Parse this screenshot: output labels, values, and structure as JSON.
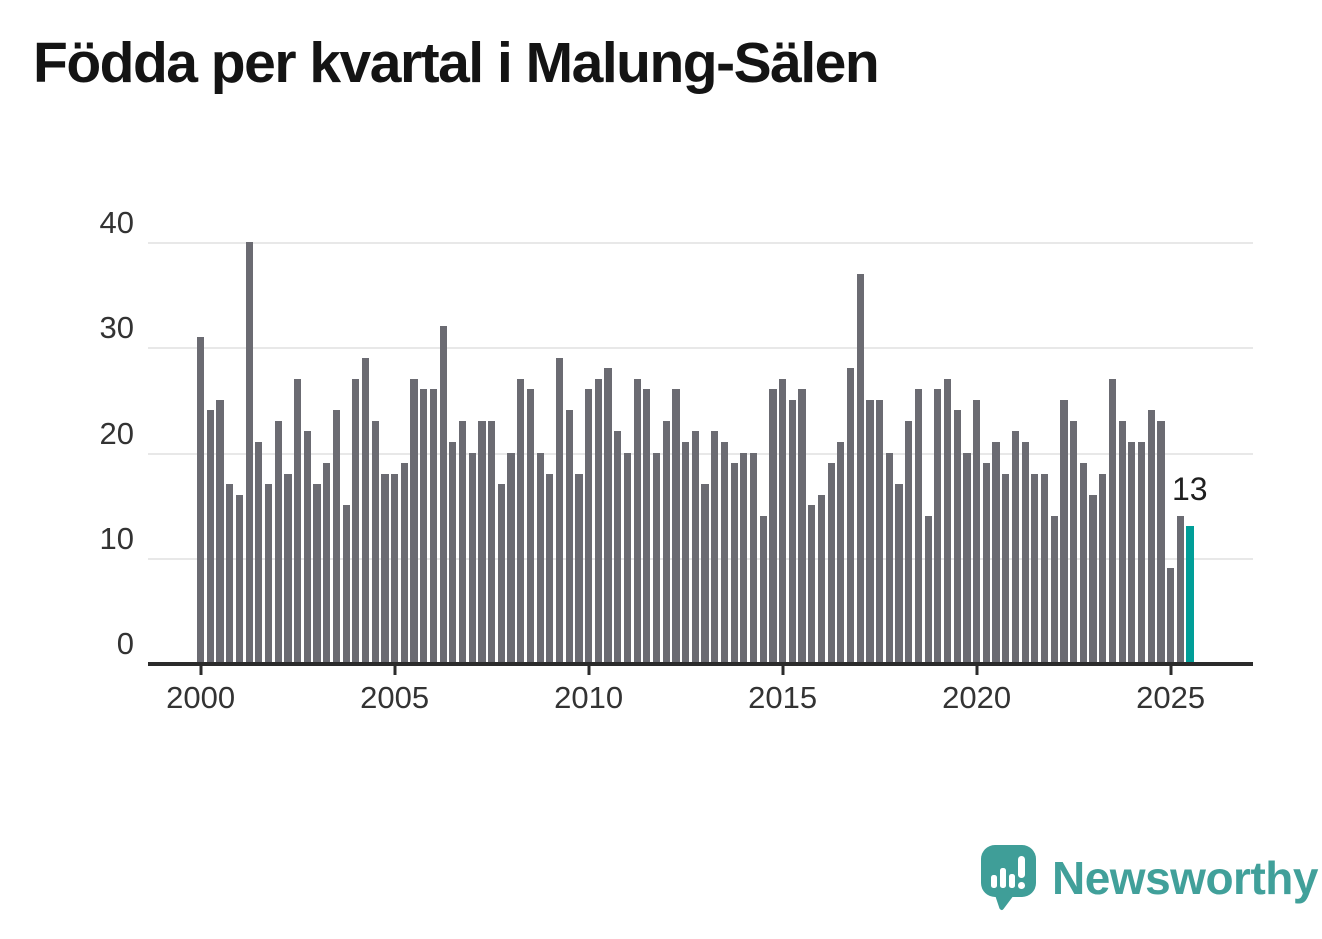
{
  "title": "Födda per kvartal i Malung-Sälen",
  "annotation": {
    "label": "13"
  },
  "watermark": {
    "brand": "Newsworthy"
  },
  "colors": {
    "bar": "#6b6b72",
    "highlight": "#009e98",
    "axis": "#2b2b2b",
    "grid": "#e8e8e8",
    "tick_text": "#333333",
    "title_text": "#141414",
    "brand_teal": "#41a09a"
  },
  "chart_data": {
    "type": "bar",
    "title": "Födda per kvartal i Malung-Sälen",
    "frequency": "quarterly",
    "x_start": "2000 Q1",
    "x_end": "2025 Q3",
    "values": [
      31,
      24,
      25,
      17,
      16,
      40,
      21,
      17,
      23,
      18,
      27,
      22,
      17,
      19,
      24,
      15,
      27,
      29,
      23,
      18,
      18,
      19,
      27,
      26,
      26,
      32,
      21,
      23,
      20,
      23,
      23,
      17,
      20,
      27,
      26,
      20,
      18,
      29,
      24,
      18,
      26,
      27,
      28,
      22,
      20,
      27,
      26,
      20,
      23,
      26,
      21,
      22,
      17,
      22,
      21,
      19,
      20,
      20,
      14,
      26,
      27,
      25,
      26,
      15,
      16,
      19,
      21,
      28,
      37,
      25,
      25,
      20,
      17,
      23,
      26,
      14,
      26,
      27,
      24,
      20,
      25,
      19,
      21,
      18,
      22,
      21,
      18,
      18,
      14,
      25,
      23,
      19,
      16,
      18,
      27,
      23,
      21,
      21,
      24,
      23,
      9,
      14,
      13
    ],
    "highlight_index": 102,
    "highlight_value": 13,
    "x_tick_labels": [
      "2000",
      "2005",
      "2010",
      "2015",
      "2020",
      "2025"
    ],
    "x_tick_interval_quarters": 20,
    "y_ticks": [
      0,
      10,
      20,
      30,
      40
    ],
    "ylim": [
      0,
      40
    ],
    "grid": "horizontal",
    "legend": "none"
  }
}
